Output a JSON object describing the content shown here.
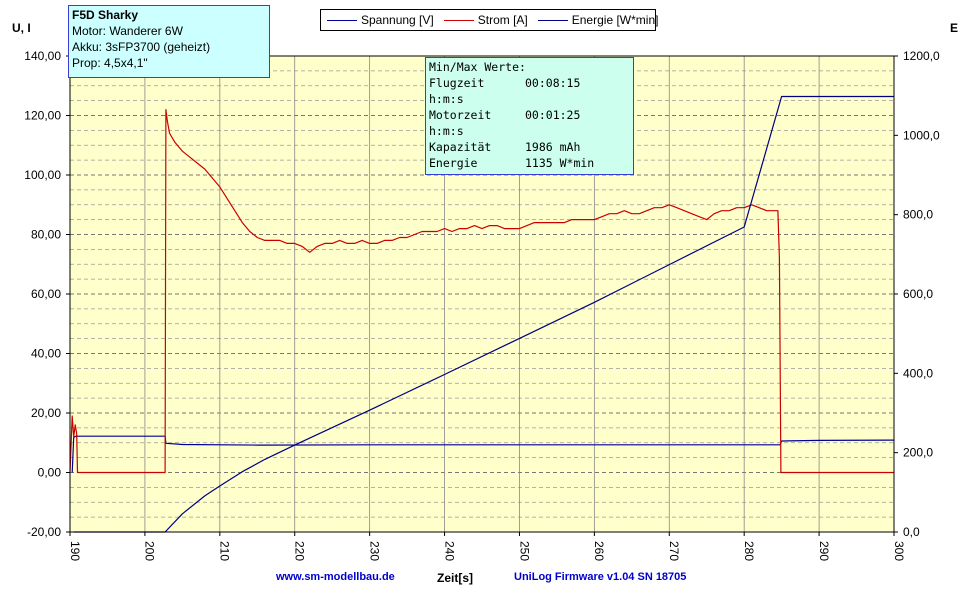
{
  "info": {
    "title": "F5D Sharky",
    "lines": [
      "Motor: Wanderer 6W",
      "Akku: 3sFP3700 (geheizt)",
      "Prop: 4,5x4,1\""
    ]
  },
  "legend": [
    {
      "name": "Spannung [V]",
      "color": "#000099"
    },
    {
      "name": "Strom [A]",
      "color": "#cc0000"
    },
    {
      "name": "Energie [W*min]",
      "color": "#000080"
    }
  ],
  "minmax": {
    "header": "Min/Max Werte:",
    "rows": [
      {
        "k": "Flugzeit",
        "v": "00:08:15"
      },
      {
        "k": "h:m:s",
        "v": ""
      },
      {
        "k": "Motorzeit",
        "v": "00:01:25"
      },
      {
        "k": "h:m:s",
        "v": ""
      },
      {
        "k": "Kapazität",
        "v": "1986 mAh"
      },
      {
        "k": "Energie",
        "v": "1135 W*min"
      }
    ]
  },
  "footer": {
    "website": "www.sm-modellbau.de",
    "firmware": "UniLog Firmware v1.04 SN 18705"
  },
  "chart_data": {
    "type": "line",
    "xlabel": "Zeit[s]",
    "ylabel_left": "U, I",
    "ylabel_right": "E",
    "xlim": [
      190,
      300
    ],
    "ylim_left": [
      -20,
      140
    ],
    "ylim_right": [
      0,
      1200
    ],
    "x_ticks": [
      "190",
      "200",
      "210",
      "220",
      "230",
      "240",
      "250",
      "260",
      "270",
      "280",
      "290",
      "300"
    ],
    "y_left_ticks": [
      "-20,00",
      "0,00",
      "20,00",
      "40,00",
      "60,00",
      "80,00",
      "100,00",
      "120,00",
      "140,00"
    ],
    "y_right_ticks": [
      "0,0",
      "200,0",
      "400,0",
      "600,0",
      "800,0",
      "1000,0",
      "1200,0"
    ],
    "grid": true,
    "plot_bg": "#ffffcc",
    "series": [
      {
        "name": "Spannung [V]",
        "axis": "left",
        "color": "#000099",
        "x": [
          190.3,
          190.5,
          190.8,
          191,
          202.7,
          202.8,
          205,
          215,
          230,
          250,
          270,
          284.8,
          285,
          290,
          300
        ],
        "y": [
          0,
          11.8,
          12.2,
          12.2,
          12.2,
          9.8,
          9.4,
          9.2,
          9.3,
          9.3,
          9.3,
          9.3,
          10.6,
          10.8,
          10.9
        ]
      },
      {
        "name": "Strom [A]",
        "axis": "left",
        "color": "#cc0000",
        "x": [
          190,
          190.3,
          190.5,
          190.7,
          190.9,
          191,
          191.3,
          191.5,
          191.7,
          191.9,
          192,
          202.7,
          202.8,
          203,
          203.3,
          204,
          205,
          206,
          207,
          208,
          209,
          210,
          211,
          212,
          213,
          214,
          215,
          216,
          217,
          218,
          219,
          220,
          221,
          222,
          223,
          224,
          225,
          226,
          227,
          228,
          229,
          230,
          231,
          232,
          233,
          234,
          235,
          236,
          237,
          238,
          239,
          240,
          241,
          242,
          243,
          244,
          245,
          246,
          247,
          248,
          249,
          250,
          251,
          252,
          253,
          254,
          255,
          256,
          257,
          258,
          259,
          260,
          261,
          262,
          263,
          264,
          265,
          266,
          267,
          268,
          269,
          270,
          271,
          272,
          273,
          274,
          275,
          276,
          277,
          278,
          279,
          280,
          281,
          282,
          283,
          284,
          284.5,
          284.7,
          284.9,
          285.1,
          290,
          300
        ],
        "y": [
          0,
          19,
          12,
          16,
          13,
          0,
          0,
          0,
          0,
          0,
          0,
          0,
          122,
          118,
          114,
          111,
          108,
          106,
          104,
          102,
          99,
          96,
          92,
          88,
          84,
          81,
          79,
          78,
          78,
          78,
          77,
          77,
          76,
          74,
          76,
          77,
          77,
          78,
          77,
          77,
          78,
          77,
          77,
          78,
          78,
          79,
          79,
          80,
          81,
          81,
          81,
          82,
          81,
          82,
          82,
          83,
          82,
          83,
          83,
          82,
          82,
          82,
          83,
          84,
          84,
          84,
          84,
          84,
          85,
          85,
          85,
          85,
          86,
          87,
          87,
          88,
          87,
          87,
          88,
          89,
          89,
          90,
          89,
          88,
          87,
          86,
          85,
          87,
          88,
          88,
          89,
          89,
          90,
          89,
          88,
          88,
          88,
          72,
          0,
          0,
          0,
          0
        ]
      },
      {
        "name": "Energie [W*min]",
        "axis": "right",
        "color": "#000080",
        "x": [
          190.5,
          202.7,
          205,
          208,
          210,
          213,
          216,
          220,
          230,
          240,
          250,
          260,
          270,
          280,
          285,
          300
        ],
        "y": [
          0,
          0,
          46,
          91,
          116,
          152,
          183,
          219,
          307,
          397,
          488,
          579,
          674,
          769,
          1098,
          1098
        ]
      }
    ]
  }
}
